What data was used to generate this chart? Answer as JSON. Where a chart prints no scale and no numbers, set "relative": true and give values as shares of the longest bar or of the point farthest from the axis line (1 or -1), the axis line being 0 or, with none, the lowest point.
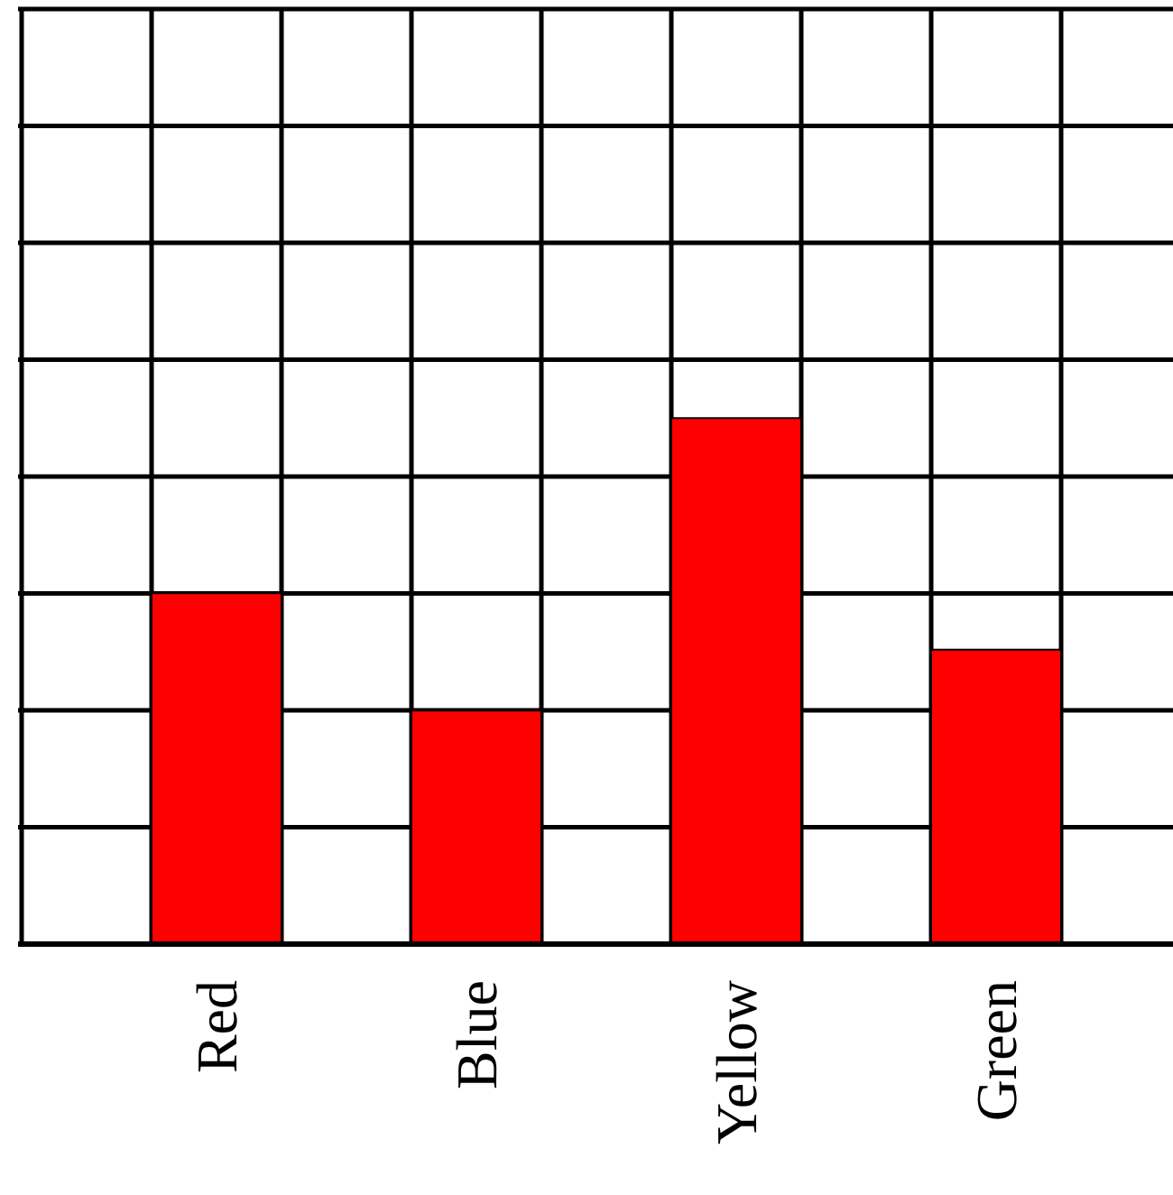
{
  "chart_data": {
    "type": "bar",
    "relative": true,
    "categories": [
      "Red",
      "Blue",
      "Yellow",
      "Green"
    ],
    "values": [
      0.667,
      0.444,
      1,
      0.56
    ],
    "color": "#ff0000",
    "grid": true
  }
}
